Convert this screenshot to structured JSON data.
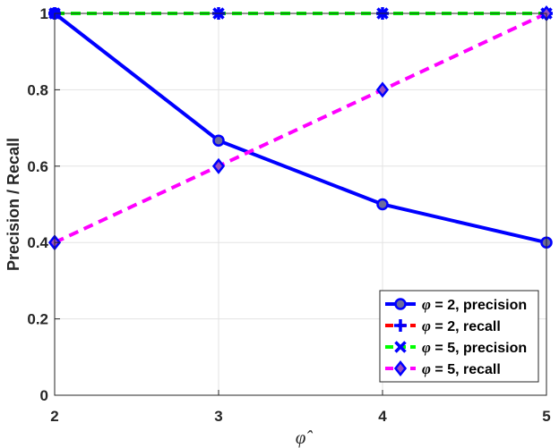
{
  "chart_data": {
    "type": "line",
    "x": [
      2,
      3,
      4,
      5
    ],
    "xlabel": "φ̂",
    "ylabel": "Precision / Recall",
    "xlim": [
      2,
      5
    ],
    "ylim": [
      0,
      1
    ],
    "xticks": [
      "2",
      "3",
      "4",
      "5"
    ],
    "yticks": [
      "0",
      "0.2",
      "0.4",
      "0.6",
      "0.8",
      "1"
    ],
    "grid": true,
    "legend_position": "bottom-right",
    "series": [
      {
        "name": "φ = 2, precision",
        "phi": "φ",
        "label_rest": " = 2, precision",
        "values": [
          1.0,
          0.667,
          0.5,
          0.4
        ],
        "color": "#0000ff",
        "line": "solid",
        "marker": "circle",
        "marker_fill": "#6c6c9c"
      },
      {
        "name": "φ = 2, recall",
        "phi": "φ",
        "label_rest": " = 2, recall",
        "values": [
          1.0,
          1.0,
          1.0,
          1.0
        ],
        "color": "#ff0000",
        "line": "dashed",
        "marker": "plus",
        "marker_fill": "#0000ff"
      },
      {
        "name": "φ = 5, precision",
        "phi": "φ",
        "label_rest": " = 5, precision",
        "values": [
          1.0,
          1.0,
          1.0,
          1.0
        ],
        "color": "#00ff00",
        "line": "dashed",
        "marker": "x",
        "marker_fill": "#0000ff"
      },
      {
        "name": "φ = 5, recall",
        "phi": "φ",
        "label_rest": " = 5, recall",
        "values": [
          0.4,
          0.6,
          0.8,
          1.0
        ],
        "color": "#ff00ff",
        "line": "dashed",
        "marker": "diamond",
        "marker_fill": "#9a4fc2"
      }
    ]
  }
}
